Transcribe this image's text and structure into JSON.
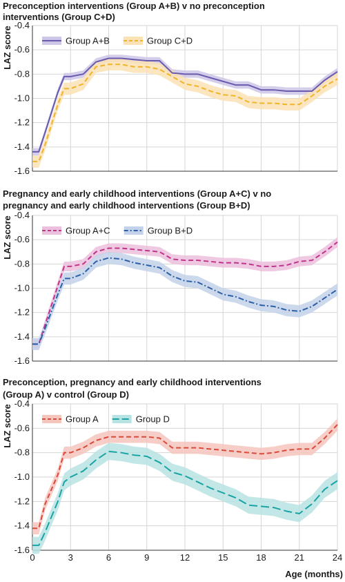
{
  "chart_data": [
    {
      "type": "line",
      "title_lines": [
        "Preconception interventions (Group A+B) v no preconception",
        "interventions (Group C+D)"
      ],
      "ylabel": "LAZ score",
      "xlabel": "",
      "x": [
        0,
        0.5,
        1,
        2,
        2.5,
        3,
        4,
        5,
        6,
        7,
        8,
        9,
        10,
        11,
        12,
        13,
        14,
        15,
        16,
        17,
        18,
        19,
        20,
        21,
        22,
        23,
        24
      ],
      "xticks": [
        "0",
        "3",
        "6",
        "9",
        "12",
        "15",
        "18",
        "21",
        "24"
      ],
      "yticks": [
        "-0.4",
        "-0.6",
        "-0.8",
        "-1.0",
        "-1.2",
        "-1.4",
        "-1.6"
      ],
      "ylim": [
        -1.6,
        -0.4
      ],
      "grid": true,
      "legend_position": "top-left",
      "series": [
        {
          "name": "Group A+B",
          "color": "#6a5aae",
          "band": "#cdc6e6",
          "dash": "solid",
          "values": [
            -1.44,
            -1.44,
            -1.28,
            -0.95,
            -0.82,
            -0.82,
            -0.8,
            -0.7,
            -0.67,
            -0.67,
            -0.68,
            -0.69,
            -0.69,
            -0.79,
            -0.8,
            -0.8,
            -0.83,
            -0.86,
            -0.89,
            -0.89,
            -0.93,
            -0.93,
            -0.94,
            -0.94,
            -0.94,
            -0.85,
            -0.78
          ],
          "band_width": 0.03
        },
        {
          "name": "Group C+D",
          "color": "#f0b429",
          "band": "#fbe2b4",
          "dash": "dashed",
          "values": [
            -1.52,
            -1.52,
            -1.38,
            -1.05,
            -0.92,
            -0.92,
            -0.88,
            -0.74,
            -0.72,
            -0.72,
            -0.74,
            -0.74,
            -0.76,
            -0.82,
            -0.88,
            -0.9,
            -0.94,
            -0.97,
            -0.98,
            -1.03,
            -1.04,
            -1.04,
            -1.05,
            -1.05,
            -0.98,
            -0.9,
            -0.84
          ],
          "band_width": 0.05
        }
      ]
    },
    {
      "type": "line",
      "title_lines": [
        "Pregnancy and early childhood interventions (Group A+C) v no",
        "pregnancy and early childhood interventions (Group B+D)"
      ],
      "ylabel": "LAZ score",
      "xlabel": "",
      "x": [
        0,
        0.5,
        1,
        2,
        2.5,
        3,
        4,
        5,
        6,
        7,
        8,
        9,
        10,
        11,
        12,
        13,
        14,
        15,
        16,
        17,
        18,
        19,
        20,
        21,
        22,
        23,
        24
      ],
      "xticks": [
        "0",
        "3",
        "6",
        "9",
        "12",
        "15",
        "18",
        "21",
        "24"
      ],
      "yticks": [
        "-0.4",
        "-0.6",
        "-0.8",
        "-1.0",
        "-1.2",
        "-1.4",
        "-1.6"
      ],
      "ylim": [
        -1.6,
        -0.4
      ],
      "grid": true,
      "legend_position": "top-left",
      "series": [
        {
          "name": "Group A+C",
          "color": "#c2338c",
          "band": "#ebc0dc",
          "dash": "dashed",
          "values": [
            -1.46,
            -1.46,
            -1.3,
            -0.98,
            -0.82,
            -0.82,
            -0.8,
            -0.7,
            -0.67,
            -0.67,
            -0.68,
            -0.69,
            -0.7,
            -0.76,
            -0.77,
            -0.77,
            -0.78,
            -0.79,
            -0.79,
            -0.8,
            -0.82,
            -0.82,
            -0.81,
            -0.78,
            -0.77,
            -0.7,
            -0.62
          ],
          "band_width": 0.04
        },
        {
          "name": "Group B+D",
          "color": "#2b5fa8",
          "band": "#c3d2ea",
          "dash": "dashdot",
          "values": [
            -1.46,
            -1.46,
            -1.33,
            -1.05,
            -0.92,
            -0.92,
            -0.88,
            -0.78,
            -0.75,
            -0.76,
            -0.79,
            -0.81,
            -0.83,
            -0.9,
            -0.94,
            -0.95,
            -1.0,
            -1.05,
            -1.07,
            -1.11,
            -1.14,
            -1.15,
            -1.18,
            -1.19,
            -1.15,
            -1.08,
            -1.01
          ],
          "band_width": 0.05
        }
      ]
    },
    {
      "type": "line",
      "title_lines": [
        "Preconception, pregnancy and early childhood interventions",
        "(Group A) v control (Group D)"
      ],
      "ylabel": "LAZ score",
      "xlabel": "Age (months)",
      "x": [
        0,
        0.5,
        1,
        2,
        2.5,
        3,
        4,
        5,
        6,
        7,
        8,
        9,
        10,
        11,
        12,
        13,
        14,
        15,
        16,
        17,
        18,
        19,
        20,
        21,
        22,
        23,
        24
      ],
      "xticks": [
        "0",
        "3",
        "6",
        "9",
        "12",
        "15",
        "18",
        "21",
        "24"
      ],
      "yticks": [
        "-0.4",
        "-0.6",
        "-0.8",
        "-1.0",
        "-1.2",
        "-1.4",
        "-1.6"
      ],
      "ylim": [
        -1.6,
        -0.4
      ],
      "grid": true,
      "legend_position": "top-left",
      "series": [
        {
          "name": "Group A",
          "color": "#d9493a",
          "band": "#f6c6bd",
          "dash": "dashed",
          "values": [
            -1.42,
            -1.42,
            -1.22,
            -0.98,
            -0.8,
            -0.8,
            -0.76,
            -0.7,
            -0.67,
            -0.67,
            -0.67,
            -0.67,
            -0.68,
            -0.76,
            -0.76,
            -0.76,
            -0.77,
            -0.78,
            -0.79,
            -0.8,
            -0.81,
            -0.8,
            -0.78,
            -0.77,
            -0.77,
            -0.68,
            -0.57
          ],
          "band_width": 0.05
        },
        {
          "name": "Group D",
          "color": "#1aa3a3",
          "band": "#b8e3e3",
          "dash": "longdash",
          "values": [
            -1.56,
            -1.56,
            -1.45,
            -1.2,
            -1.04,
            -1.0,
            -0.95,
            -0.86,
            -0.79,
            -0.8,
            -0.82,
            -0.83,
            -0.88,
            -0.96,
            -0.99,
            -1.04,
            -1.09,
            -1.13,
            -1.17,
            -1.23,
            -1.24,
            -1.25,
            -1.28,
            -1.3,
            -1.22,
            -1.1,
            -1.03
          ],
          "band_width": 0.07
        }
      ]
    }
  ]
}
